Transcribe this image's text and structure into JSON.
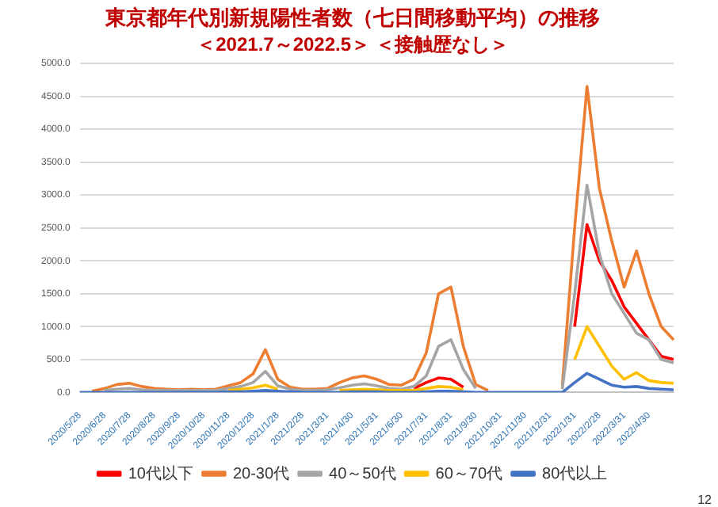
{
  "chart_data": {
    "type": "line",
    "title": "東京都年代別新規陽性者数（七日間移動平均）の推移",
    "subtitle": "＜2021.7～2022.5＞ ＜接触歴なし＞",
    "categories": [
      "2020/5/28",
      null,
      "2020/6/28",
      null,
      "2020/7/28",
      null,
      "2020/8/28",
      null,
      "2020/9/28",
      null,
      "2020/10/28",
      null,
      "2020/11/28",
      null,
      "2020/12/28",
      null,
      "2021/1/28",
      null,
      "2021/2/28",
      null,
      "2021/3/31",
      null,
      "2021/4/30",
      null,
      "2021/5/31",
      null,
      "2021/6/30",
      null,
      "2021/7/31",
      null,
      "2021/8/31",
      null,
      "2021/9/30",
      null,
      "2021/10/31",
      null,
      "2021/11/30",
      null,
      "2021/12/31",
      null,
      "2022/1/31",
      null,
      "2022/2/28",
      null,
      "2022/3/31",
      null,
      "2022/4/30",
      null,
      null
    ],
    "series": [
      {
        "name": "10代以下",
        "color": "#ff0000",
        "values": [
          null,
          null,
          null,
          null,
          null,
          null,
          null,
          null,
          null,
          null,
          null,
          null,
          null,
          null,
          null,
          null,
          null,
          null,
          null,
          null,
          null,
          null,
          null,
          null,
          null,
          null,
          null,
          60,
          150,
          220,
          200,
          80,
          null,
          null,
          null,
          null,
          null,
          null,
          null,
          null,
          1000,
          2550,
          2000,
          1700,
          1300,
          1050,
          800,
          550,
          500
        ]
      },
      {
        "name": "20-30代",
        "color": "#ed7d31",
        "values": [
          null,
          20,
          60,
          120,
          140,
          90,
          60,
          50,
          40,
          50,
          40,
          50,
          100,
          150,
          280,
          650,
          200,
          80,
          50,
          50,
          60,
          150,
          220,
          250,
          200,
          120,
          110,
          200,
          600,
          1500,
          1600,
          700,
          120,
          30,
          null,
          null,
          null,
          null,
          null,
          100,
          2500,
          4650,
          3100,
          2300,
          1600,
          2150,
          1500,
          1000,
          800
        ]
      },
      {
        "name": "40～50代",
        "color": "#a5a5a5",
        "values": [
          null,
          null,
          30,
          50,
          60,
          40,
          30,
          30,
          30,
          30,
          30,
          30,
          60,
          90,
          150,
          320,
          100,
          50,
          30,
          30,
          40,
          70,
          110,
          130,
          100,
          60,
          50,
          90,
          250,
          700,
          800,
          350,
          60,
          null,
          null,
          null,
          null,
          null,
          null,
          50,
          1500,
          3150,
          2100,
          1500,
          1200,
          900,
          800,
          500,
          450
        ]
      },
      {
        "name": "60～70代",
        "color": "#ffc000",
        "values": [
          null,
          null,
          null,
          null,
          null,
          null,
          null,
          null,
          null,
          null,
          null,
          null,
          30,
          50,
          70,
          110,
          50,
          null,
          null,
          null,
          null,
          30,
          40,
          50,
          40,
          30,
          30,
          30,
          60,
          90,
          80,
          40,
          null,
          null,
          null,
          null,
          null,
          null,
          null,
          null,
          500,
          1000,
          700,
          400,
          200,
          300,
          180,
          150,
          140
        ]
      },
      {
        "name": "80代以上",
        "color": "#4472c4",
        "values": [
          0,
          0,
          0,
          0,
          0,
          0,
          0,
          0,
          0,
          0,
          0,
          0,
          10,
          10,
          20,
          30,
          20,
          10,
          0,
          0,
          0,
          0,
          10,
          10,
          10,
          0,
          0,
          0,
          10,
          20,
          20,
          10,
          0,
          0,
          0,
          0,
          0,
          0,
          0,
          0,
          150,
          290,
          200,
          110,
          80,
          90,
          60,
          50,
          40
        ]
      }
    ],
    "ylim": [
      0,
      5000
    ],
    "yticks": [
      {
        "value": 0,
        "label": "0.0"
      },
      {
        "value": 500,
        "label": "500.0"
      },
      {
        "value": 1000,
        "label": "1000.0"
      },
      {
        "value": 1500,
        "label": "1500.0"
      },
      {
        "value": 2000,
        "label": "2000.0"
      },
      {
        "value": 2500,
        "label": "2500.0"
      },
      {
        "value": 3000,
        "label": "3000.0"
      },
      {
        "value": 3500,
        "label": "3500.0"
      },
      {
        "value": 4000,
        "label": "4000.0"
      },
      {
        "value": 4500,
        "label": "4500.0"
      },
      {
        "value": 5000,
        "label": "5000.0"
      }
    ],
    "grid": "y",
    "legend": "bottom",
    "marker": "none",
    "line_style": "solid",
    "annotations": [
      "12"
    ]
  }
}
